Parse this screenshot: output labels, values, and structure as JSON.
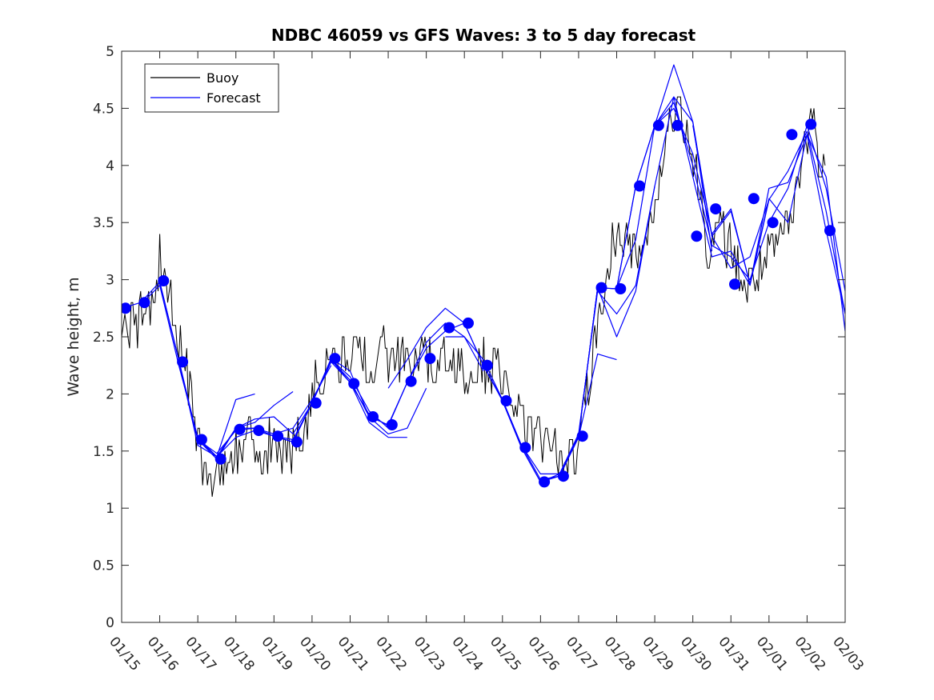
{
  "chart_data": {
    "type": "line",
    "title": "NDBC 46059 vs GFS Waves: 3 to 5 day forecast",
    "xlabel": "",
    "ylabel": "Wave height, m",
    "xlim": [
      0,
      19
    ],
    "ylim": [
      0,
      5
    ],
    "x_ticks": [
      "01/15",
      "01/16",
      "01/17",
      "01/18",
      "01/19",
      "01/20",
      "01/21",
      "01/22",
      "01/23",
      "01/24",
      "01/25",
      "01/26",
      "01/27",
      "01/28",
      "01/29",
      "01/30",
      "01/31",
      "02/01",
      "02/02",
      "02/03"
    ],
    "y_ticks": [
      "0",
      "0.5",
      "1",
      "1.5",
      "2",
      "2.5",
      "3",
      "3.5",
      "4",
      "4.5",
      "5"
    ],
    "legend": {
      "position": "top-left",
      "entries": [
        {
          "label": "Buoy",
          "color": "#000000"
        },
        {
          "label": "Forecast",
          "color": "#0000ff"
        }
      ]
    },
    "series": [
      {
        "name": "Buoy",
        "color": "#000000",
        "anchors": [
          [
            0,
            2.7
          ],
          [
            0.3,
            2.6
          ],
          [
            0.6,
            2.75
          ],
          [
            0.9,
            2.9
          ],
          [
            1.0,
            3.2
          ],
          [
            1.2,
            3.0
          ],
          [
            1.4,
            2.6
          ],
          [
            1.6,
            2.3
          ],
          [
            1.8,
            2.0
          ],
          [
            2.0,
            1.6
          ],
          [
            2.2,
            1.35
          ],
          [
            2.5,
            1.3
          ],
          [
            2.8,
            1.4
          ],
          [
            3.0,
            1.5
          ],
          [
            3.4,
            1.6
          ],
          [
            3.8,
            1.55
          ],
          [
            4.2,
            1.5
          ],
          [
            4.5,
            1.55
          ],
          [
            4.8,
            1.7
          ],
          [
            5.0,
            2.0
          ],
          [
            5.3,
            2.2
          ],
          [
            5.6,
            2.3
          ],
          [
            6.0,
            2.35
          ],
          [
            6.5,
            2.3
          ],
          [
            7.0,
            2.35
          ],
          [
            7.5,
            2.3
          ],
          [
            8.0,
            2.3
          ],
          [
            8.5,
            2.25
          ],
          [
            9.0,
            2.2
          ],
          [
            9.5,
            2.25
          ],
          [
            10.0,
            2.2
          ],
          [
            10.3,
            1.95
          ],
          [
            10.6,
            1.7
          ],
          [
            11.0,
            1.6
          ],
          [
            11.5,
            1.5
          ],
          [
            11.7,
            1.4
          ],
          [
            12.0,
            1.5
          ],
          [
            12.2,
            1.9
          ],
          [
            12.5,
            2.6
          ],
          [
            12.8,
            3.2
          ],
          [
            13.0,
            3.4
          ],
          [
            13.3,
            3.3
          ],
          [
            13.6,
            3.3
          ],
          [
            14.0,
            3.6
          ],
          [
            14.3,
            4.1
          ],
          [
            14.5,
            4.5
          ],
          [
            14.8,
            4.3
          ],
          [
            15.1,
            3.9
          ],
          [
            15.4,
            3.3
          ],
          [
            15.8,
            3.4
          ],
          [
            16.2,
            3.1
          ],
          [
            16.4,
            2.9
          ],
          [
            16.8,
            3.1
          ],
          [
            17.2,
            3.3
          ],
          [
            17.6,
            3.5
          ],
          [
            17.9,
            4.1
          ],
          [
            18.1,
            4.5
          ],
          [
            18.3,
            4.1
          ],
          [
            18.5,
            3.8
          ]
        ]
      },
      {
        "name": "Forecast 1",
        "color": "#0000ff",
        "x": [
          0,
          0.5,
          1.0,
          1.5,
          2.0,
          2.5,
          3.0,
          3.5
        ],
        "y": [
          2.75,
          2.8,
          2.98,
          2.3,
          1.55,
          1.45,
          1.95,
          2.0
        ]
      },
      {
        "name": "Forecast 2",
        "color": "#0000ff",
        "x": [
          0.5,
          1.0,
          1.5,
          2.0,
          2.5,
          3.0,
          3.5,
          4.0,
          4.5
        ],
        "y": [
          2.78,
          2.95,
          2.25,
          1.62,
          1.45,
          1.7,
          1.75,
          1.9,
          2.02
        ]
      },
      {
        "name": "Forecast 3",
        "color": "#0000ff",
        "x": [
          1.0,
          1.5,
          2.0,
          2.5,
          3.0,
          3.5,
          4.0,
          4.5,
          5.0,
          5.5
        ],
        "y": [
          2.98,
          2.3,
          1.6,
          1.48,
          1.68,
          1.7,
          1.65,
          1.7,
          1.95,
          2.25
        ]
      },
      {
        "name": "Forecast 4",
        "color": "#0000ff",
        "x": [
          1.5,
          2.0,
          2.5,
          3.0,
          3.5,
          4.0,
          4.5,
          5.0,
          5.5,
          6.0,
          6.5,
          7.0
        ],
        "y": [
          2.28,
          1.6,
          1.43,
          1.7,
          1.78,
          1.8,
          1.65,
          1.92,
          2.3,
          2.15,
          1.85,
          1.7
        ]
      },
      {
        "name": "Forecast 5",
        "color": "#0000ff",
        "x": [
          2.0,
          2.5,
          3.0,
          3.5,
          4.0,
          4.5,
          5.0,
          5.5,
          6.0,
          6.5,
          7.0,
          7.5
        ],
        "y": [
          1.6,
          1.45,
          1.62,
          1.68,
          1.63,
          1.58,
          1.92,
          2.3,
          2.1,
          1.75,
          1.62,
          1.62
        ]
      },
      {
        "name": "Forecast 6",
        "color": "#0000ff",
        "x": [
          2.5,
          3.0,
          3.5,
          4.0,
          4.5,
          5.0,
          5.5,
          6.0,
          6.5,
          7.0,
          7.5,
          8.0
        ],
        "y": [
          1.43,
          1.7,
          1.7,
          1.63,
          1.58,
          1.92,
          2.31,
          2.2,
          1.8,
          1.65,
          1.7,
          2.05
        ]
      },
      {
        "name": "Forecast 7",
        "color": "#0000ff",
        "x": [
          4.0,
          4.5,
          5.0,
          5.5,
          6.0,
          6.5,
          7.0,
          7.5,
          8.0,
          8.5,
          9.0,
          9.5
        ],
        "y": [
          1.63,
          1.6,
          1.92,
          2.28,
          2.1,
          1.82,
          1.72,
          2.1,
          2.45,
          2.62,
          2.5,
          2.2
        ]
      },
      {
        "name": "Forecast 8",
        "color": "#0000ff",
        "x": [
          5.0,
          5.5,
          6.0,
          6.5,
          7.0,
          7.5,
          8.0,
          8.5,
          9.0,
          9.5,
          10.0,
          10.5,
          11.0,
          11.5,
          12.0,
          12.5,
          13.0
        ],
        "y": [
          1.92,
          2.3,
          2.12,
          1.8,
          1.73,
          2.1,
          2.4,
          2.55,
          2.62,
          2.25,
          1.95,
          1.55,
          1.25,
          1.28,
          1.62,
          2.35,
          2.3
        ]
      },
      {
        "name": "Forecast 9",
        "color": "#0000ff",
        "x": [
          7.0,
          7.5,
          8.0,
          8.5,
          9.0,
          9.5,
          10.0,
          10.5,
          11.0,
          11.5,
          12.0,
          12.5,
          13.0,
          13.5,
          14.0
        ],
        "y": [
          2.05,
          2.3,
          2.58,
          2.75,
          2.62,
          2.25,
          1.94,
          1.53,
          1.23,
          1.3,
          1.63,
          2.93,
          2.5,
          2.9,
          3.82
        ]
      },
      {
        "name": "Forecast 10",
        "color": "#0000ff",
        "x": [
          8.5,
          9.0,
          9.5,
          10.0,
          10.5,
          11.0,
          11.5,
          12.0,
          12.5,
          13.0,
          13.5,
          14.0,
          14.5,
          15.0,
          15.5
        ],
        "y": [
          2.5,
          2.5,
          2.3,
          1.95,
          1.55,
          1.3,
          1.3,
          1.65,
          2.9,
          2.7,
          2.95,
          3.82,
          4.6,
          4.38,
          3.25
        ]
      },
      {
        "name": "Forecast 11",
        "color": "#0000ff",
        "x": [
          10.0,
          10.5,
          11.0,
          11.5,
          12.0,
          12.5,
          13.0,
          13.5,
          14.0,
          14.5,
          15.0,
          15.5,
          16.0,
          16.5,
          17.0
        ],
        "y": [
          1.94,
          1.53,
          1.23,
          1.28,
          1.63,
          2.93,
          2.92,
          3.35,
          4.35,
          4.88,
          4.38,
          3.38,
          3.1,
          3.2,
          3.7
        ]
      },
      {
        "name": "Forecast 12",
        "color": "#0000ff",
        "x": [
          12.0,
          12.5,
          13.0,
          13.5,
          14.0,
          14.5,
          15.0,
          15.5,
          16.0,
          16.5,
          17.0,
          17.5,
          18.0,
          18.5,
          19.0
        ],
        "y": [
          1.63,
          2.93,
          2.92,
          3.82,
          4.35,
          4.6,
          3.9,
          3.2,
          3.25,
          2.95,
          3.7,
          3.95,
          4.3,
          3.6,
          2.7
        ]
      },
      {
        "name": "Forecast 13",
        "color": "#0000ff",
        "x": [
          13.0,
          13.5,
          14.0,
          14.5,
          15.0,
          15.5,
          16.0,
          16.5,
          17.0,
          17.5,
          18.0,
          18.5,
          19.0
        ],
        "y": [
          2.92,
          3.82,
          4.35,
          4.55,
          4.0,
          3.3,
          3.2,
          3.0,
          3.5,
          3.8,
          4.35,
          3.8,
          2.9
        ]
      },
      {
        "name": "Forecast 14",
        "color": "#0000ff",
        "x": [
          14.0,
          14.5,
          15.0,
          15.5,
          16.0,
          16.5,
          17.0,
          17.5,
          18.0,
          18.5,
          19.0
        ],
        "y": [
          4.35,
          4.5,
          4.1,
          3.4,
          3.62,
          2.96,
          3.8,
          3.85,
          4.27,
          3.9,
          2.55
        ]
      },
      {
        "name": "Forecast 15",
        "color": "#0000ff",
        "x": [
          15.0,
          15.5,
          16.0,
          16.5,
          17.0,
          17.5,
          18.0,
          18.5,
          19.0
        ],
        "y": [
          4.35,
          3.38,
          3.6,
          2.96,
          3.71,
          3.5,
          4.27,
          3.43,
          2.7
        ]
      }
    ],
    "markers": {
      "name": "Forecast points",
      "color": "#0000ff",
      "x": [
        0.1,
        0.6,
        1.1,
        1.6,
        2.1,
        2.6,
        3.1,
        3.6,
        4.1,
        4.6,
        5.1,
        5.6,
        6.1,
        6.6,
        7.1,
        7.6,
        8.1,
        8.6,
        9.1,
        9.6,
        10.1,
        10.6,
        11.1,
        11.6,
        12.1,
        12.6,
        13.1,
        13.6,
        14.1,
        14.6,
        15.1,
        15.6,
        16.1,
        16.6,
        17.1,
        17.6,
        18.1,
        18.6
      ],
      "y": [
        2.75,
        2.8,
        2.99,
        2.28,
        1.6,
        1.43,
        1.69,
        1.68,
        1.63,
        1.58,
        1.92,
        2.31,
        2.09,
        1.8,
        1.73,
        2.11,
        2.31,
        2.58,
        2.62,
        2.25,
        1.94,
        1.53,
        1.23,
        1.28,
        1.63,
        2.93,
        2.92,
        3.82,
        4.35,
        4.35,
        3.38,
        3.62,
        2.96,
        3.71,
        3.5,
        4.27,
        4.36,
        3.43
      ]
    }
  }
}
